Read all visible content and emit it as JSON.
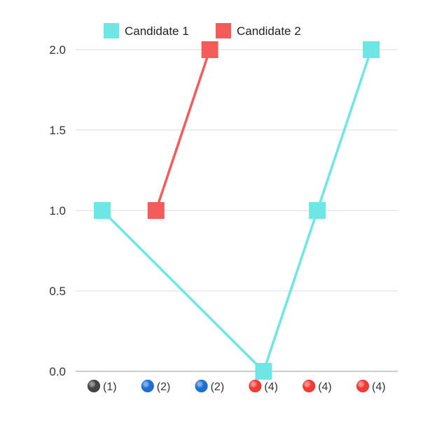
{
  "chart_data": {
    "type": "line",
    "title": "",
    "xlabel": "",
    "ylabel": "",
    "categories": [
      "(1)",
      "(2)",
      "(2)",
      "(4)",
      "(4)",
      "(4)"
    ],
    "category_markers": [
      {
        "label": "(1)",
        "color": "#444444"
      },
      {
        "label": "(2)",
        "color": "#1f6fd0"
      },
      {
        "label": "(2)",
        "color": "#1f6fd0"
      },
      {
        "label": "(4)",
        "color": "#f03a35"
      },
      {
        "label": "(4)",
        "color": "#f03a35"
      },
      {
        "label": "(4)",
        "color": "#f03a35"
      }
    ],
    "series": [
      {
        "name": "Candidate 1",
        "color": "#6ee6e6",
        "values": [
          1,
          null,
          null,
          0,
          1,
          2
        ]
      },
      {
        "name": "Candidate 2",
        "color": "#f45b5b",
        "values": [
          null,
          1,
          2,
          null,
          null,
          null
        ]
      }
    ],
    "ylim": [
      0,
      2
    ],
    "yticks": [
      "0.0",
      "0.5",
      "1.0",
      "1.5",
      "2.0"
    ],
    "grid": true,
    "legend": "top-left"
  }
}
